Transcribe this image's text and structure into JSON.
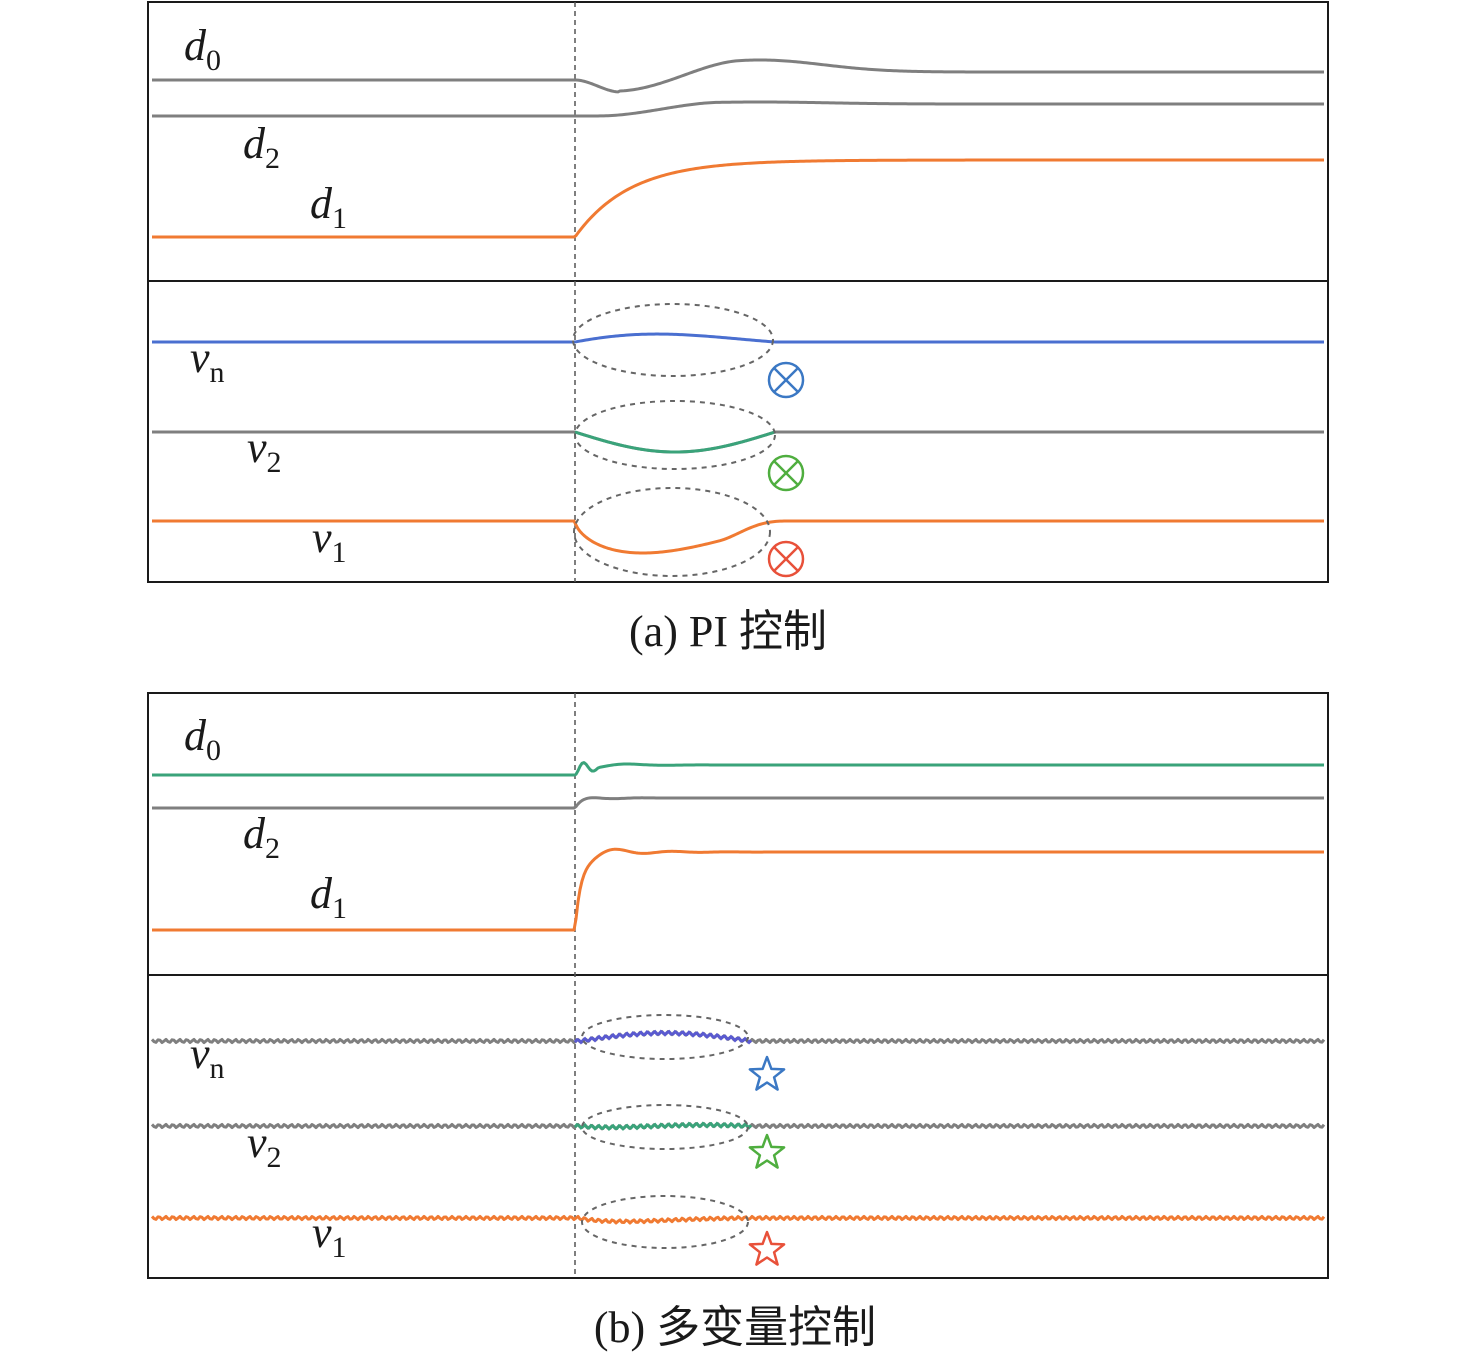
{
  "chart_data": [
    {
      "type": "line",
      "caption": "(a) PI 控制",
      "panels": [
        {
          "id": "duty",
          "series": [
            {
              "name": "d0",
              "label_main": "d",
              "label_sub": "0",
              "color": "#7f7f7f",
              "trace": "over-up",
              "overshoot": true,
              "ripple": false
            },
            {
              "name": "d2",
              "label_main": "d",
              "label_sub": "2",
              "color": "#7f7f7f",
              "trace": "under-down",
              "overshoot": true,
              "ripple": false
            },
            {
              "name": "d1",
              "label_main": "d",
              "label_sub": "1",
              "color": "#f07a32",
              "trace": "rise",
              "overshoot": false,
              "ripple": false
            }
          ]
        },
        {
          "id": "voltage",
          "series": [
            {
              "name": "vn",
              "label_main": "v",
              "label_sub": "n",
              "color": "#4a6fd0",
              "trace": "bump-up",
              "ripple": false,
              "marker": "otimes"
            },
            {
              "name": "v2",
              "label_main": "v",
              "label_sub": "2",
              "color": "#7f7f7f",
              "accent": "#3aa37a",
              "trace": "dip-mid",
              "ripple": false,
              "marker": "otimes"
            },
            {
              "name": "v1",
              "label_main": "v",
              "label_sub": "1",
              "color": "#f07a32",
              "trace": "dip-deep",
              "ripple": false,
              "marker": "otimes"
            }
          ],
          "marker_colors": [
            "#3b78c4",
            "#4fae3f",
            "#e8513a"
          ]
        }
      ]
    },
    {
      "type": "line",
      "caption": "(b) 多变量控制",
      "panels": [
        {
          "id": "duty",
          "series": [
            {
              "name": "d0",
              "label_main": "d",
              "label_sub": "0",
              "color": "#3aa37a",
              "trace": "fast-up",
              "ripple": false
            },
            {
              "name": "d2",
              "label_main": "d",
              "label_sub": "2",
              "color": "#7f7f7f",
              "trace": "fast-down",
              "ripple": false
            },
            {
              "name": "d1",
              "label_main": "d",
              "label_sub": "1",
              "color": "#f07a32",
              "trace": "fast-rise",
              "ripple": false
            }
          ]
        },
        {
          "id": "voltage",
          "series": [
            {
              "name": "vn",
              "label_main": "v",
              "label_sub": "n",
              "color": "#7f7f7f",
              "accent": "#5a5ad0",
              "trace": "small-bump",
              "ripple": true,
              "marker": "star"
            },
            {
              "name": "v2",
              "label_main": "v",
              "label_sub": "2",
              "color": "#7f7f7f",
              "accent": "#3aa37a",
              "trace": "small-dip",
              "ripple": true,
              "marker": "star"
            },
            {
              "name": "v1",
              "label_main": "v",
              "label_sub": "1",
              "color": "#f07a32",
              "trace": "small-dip",
              "ripple": true,
              "marker": "star"
            }
          ],
          "marker_colors": [
            "#3b78c4",
            "#4fae3f",
            "#e8513a"
          ]
        }
      ]
    }
  ]
}
